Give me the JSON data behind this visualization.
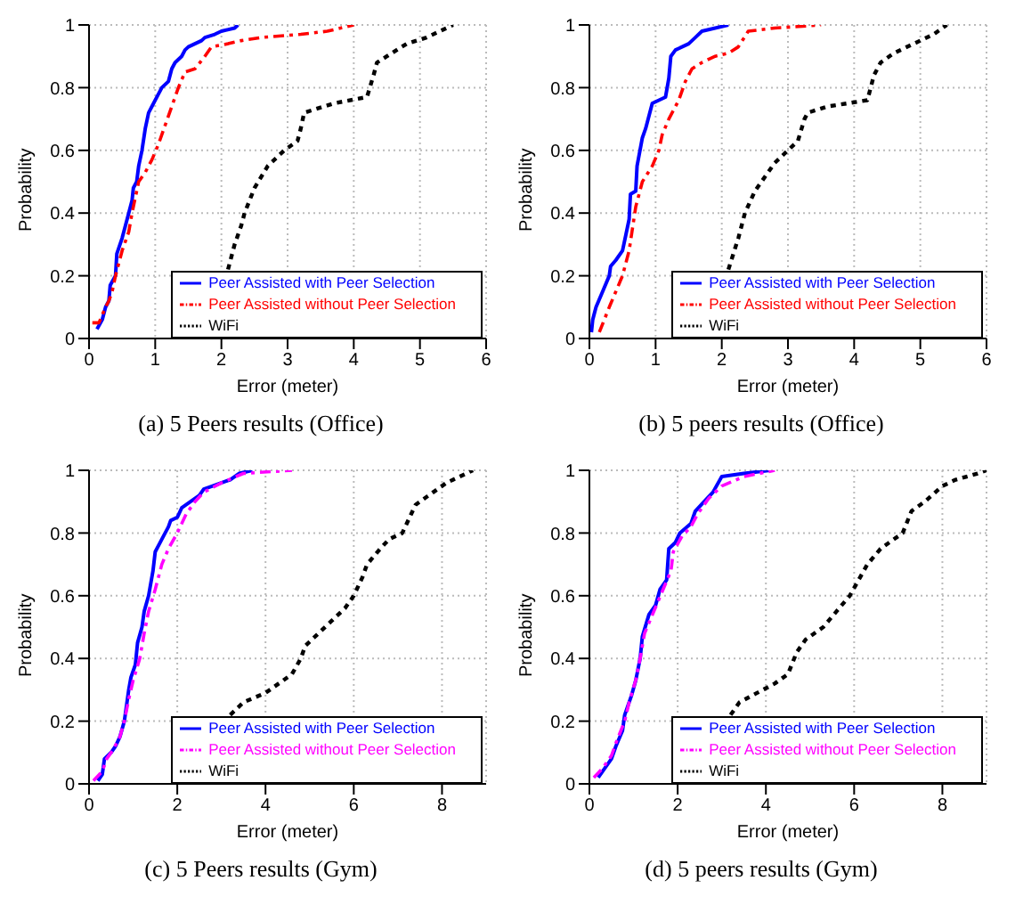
{
  "chart_data": [
    {
      "type": "line",
      "title": "(a) 5 Peers results (Office)",
      "xlabel": "Error (meter)",
      "ylabel": "Probability",
      "xlim": [
        0,
        6
      ],
      "xticks": [
        0,
        1,
        2,
        3,
        4,
        5,
        6
      ],
      "ylim": [
        0,
        1
      ],
      "yticks": [
        0,
        0.2,
        0.4,
        0.6,
        0.8,
        1
      ],
      "grid": true,
      "legend": "bottom right",
      "marker": "none",
      "series": [
        {
          "name": "Peer Assisted with Peer Selection",
          "color": "#0000ff",
          "line_style": "solid",
          "x": [
            0.12,
            0.2,
            0.25,
            0.3,
            0.32,
            0.4,
            0.42,
            0.5,
            0.55,
            0.6,
            0.65,
            0.67,
            0.72,
            0.75,
            0.8,
            0.85,
            0.9,
            0.95,
            1.05,
            1.1,
            1.2,
            1.25,
            1.3,
            1.4,
            1.45,
            1.5,
            1.6,
            1.7,
            1.75,
            1.9,
            2.0,
            2.2,
            2.25
          ],
          "values": [
            0.03,
            0.06,
            0.1,
            0.12,
            0.17,
            0.2,
            0.27,
            0.32,
            0.36,
            0.4,
            0.44,
            0.48,
            0.5,
            0.55,
            0.6,
            0.67,
            0.72,
            0.74,
            0.78,
            0.8,
            0.82,
            0.86,
            0.88,
            0.9,
            0.92,
            0.93,
            0.94,
            0.95,
            0.96,
            0.97,
            0.98,
            0.99,
            1.0
          ]
        },
        {
          "name": "Peer Assisted without Peer Selection",
          "color": "#ff0000",
          "line_style": "dashed",
          "x": [
            0.05,
            0.15,
            0.25,
            0.3,
            0.35,
            0.4,
            0.45,
            0.5,
            0.6,
            0.65,
            0.7,
            0.75,
            0.85,
            0.95,
            1.05,
            1.15,
            1.25,
            1.35,
            1.45,
            1.6,
            1.75,
            1.85,
            2.1,
            2.3,
            2.6,
            3.2,
            3.6,
            3.8,
            4.0
          ],
          "values": [
            0.05,
            0.05,
            0.1,
            0.12,
            0.15,
            0.2,
            0.24,
            0.28,
            0.34,
            0.4,
            0.45,
            0.5,
            0.53,
            0.57,
            0.62,
            0.68,
            0.74,
            0.8,
            0.85,
            0.86,
            0.9,
            0.93,
            0.94,
            0.95,
            0.96,
            0.97,
            0.98,
            0.99,
            1.0
          ]
        },
        {
          "name": "WiFi",
          "color": "#000000",
          "line_style": "dotted",
          "x": [
            2.1,
            2.2,
            2.3,
            2.35,
            2.5,
            2.7,
            2.95,
            3.15,
            3.2,
            3.25,
            3.4,
            3.7,
            4.2,
            4.3,
            4.35,
            4.5,
            4.8,
            5.1,
            5.3,
            5.5
          ],
          "values": [
            0.22,
            0.3,
            0.36,
            0.4,
            0.48,
            0.55,
            0.6,
            0.63,
            0.67,
            0.72,
            0.73,
            0.75,
            0.77,
            0.84,
            0.88,
            0.9,
            0.94,
            0.96,
            0.98,
            1.0
          ]
        }
      ]
    },
    {
      "type": "line",
      "title": "(b) 5 peers results (Office)",
      "xlabel": "Error (meter)",
      "ylabel": "Probability",
      "xlim": [
        0,
        6
      ],
      "xticks": [
        0,
        1,
        2,
        3,
        4,
        5,
        6
      ],
      "ylim": [
        0,
        1
      ],
      "yticks": [
        0,
        0.2,
        0.4,
        0.6,
        0.8,
        1
      ],
      "grid": true,
      "legend": "bottom right",
      "marker": "none",
      "series": [
        {
          "name": "Peer Assisted with Peer Selection",
          "color": "#0000ff",
          "line_style": "solid",
          "x": [
            0.03,
            0.05,
            0.1,
            0.2,
            0.3,
            0.32,
            0.4,
            0.5,
            0.55,
            0.6,
            0.62,
            0.7,
            0.72,
            0.8,
            0.85,
            0.95,
            1.05,
            1.15,
            1.2,
            1.23,
            1.3,
            1.5,
            1.6,
            1.7,
            2.1
          ],
          "values": [
            0.02,
            0.06,
            0.1,
            0.15,
            0.2,
            0.23,
            0.25,
            0.28,
            0.33,
            0.38,
            0.46,
            0.47,
            0.55,
            0.64,
            0.67,
            0.75,
            0.76,
            0.77,
            0.83,
            0.9,
            0.92,
            0.94,
            0.96,
            0.98,
            1.0
          ]
        },
        {
          "name": "Peer Assisted without Peer Selection",
          "color": "#ff0000",
          "line_style": "dashed",
          "x": [
            0.15,
            0.3,
            0.4,
            0.5,
            0.6,
            0.65,
            0.7,
            0.8,
            0.95,
            1.05,
            1.1,
            1.2,
            1.35,
            1.45,
            1.55,
            1.7,
            1.9,
            2.1,
            2.25,
            2.4,
            2.8,
            3.5
          ],
          "values": [
            0.02,
            0.1,
            0.15,
            0.2,
            0.28,
            0.35,
            0.42,
            0.5,
            0.55,
            0.6,
            0.65,
            0.7,
            0.76,
            0.82,
            0.86,
            0.88,
            0.9,
            0.91,
            0.93,
            0.98,
            0.99,
            1.0
          ]
        },
        {
          "name": "WiFi",
          "color": "#000000",
          "line_style": "dotted",
          "x": [
            2.1,
            2.25,
            2.35,
            2.5,
            2.8,
            3.0,
            3.15,
            3.25,
            3.3,
            3.6,
            4.2,
            4.3,
            4.4,
            4.6,
            5.0,
            5.2,
            5.4
          ],
          "values": [
            0.22,
            0.32,
            0.4,
            0.47,
            0.56,
            0.6,
            0.63,
            0.7,
            0.72,
            0.74,
            0.76,
            0.84,
            0.88,
            0.91,
            0.95,
            0.97,
            1.0
          ]
        }
      ]
    },
    {
      "type": "line",
      "title": "(c) 5 Peers results (Gym)",
      "xlabel": "Error (meter)",
      "ylabel": "Probability",
      "xlim": [
        0,
        9
      ],
      "xticks": [
        0,
        2,
        4,
        6,
        8
      ],
      "ylim": [
        0,
        1
      ],
      "yticks": [
        0,
        0.2,
        0.4,
        0.6,
        0.8,
        1
      ],
      "grid": true,
      "legend": "bottom right",
      "marker": "none",
      "series": [
        {
          "name": "Peer Assisted with Peer Selection",
          "color": "#0000ff",
          "line_style": "solid",
          "x": [
            0.2,
            0.3,
            0.35,
            0.5,
            0.6,
            0.7,
            0.8,
            0.85,
            0.9,
            0.95,
            1.05,
            1.1,
            1.2,
            1.25,
            1.35,
            1.45,
            1.5,
            1.65,
            1.8,
            1.85,
            2.0,
            2.1,
            2.3,
            2.5,
            2.6,
            2.8,
            3.2,
            3.4,
            3.7
          ],
          "values": [
            0.01,
            0.03,
            0.08,
            0.1,
            0.12,
            0.15,
            0.2,
            0.25,
            0.3,
            0.34,
            0.38,
            0.45,
            0.5,
            0.55,
            0.6,
            0.68,
            0.74,
            0.78,
            0.82,
            0.84,
            0.85,
            0.88,
            0.9,
            0.92,
            0.94,
            0.95,
            0.97,
            0.99,
            1.0
          ]
        },
        {
          "name": "Peer Assisted without Peer Selection",
          "color": "#ff00ff",
          "line_style": "dashed",
          "x": [
            0.1,
            0.3,
            0.4,
            0.55,
            0.7,
            0.8,
            0.9,
            1.0,
            1.15,
            1.25,
            1.35,
            1.5,
            1.65,
            1.8,
            2.0,
            2.2,
            2.4,
            2.6,
            3.0,
            3.5,
            4.6
          ],
          "values": [
            0.01,
            0.04,
            0.08,
            0.11,
            0.15,
            0.2,
            0.27,
            0.33,
            0.4,
            0.48,
            0.55,
            0.62,
            0.7,
            0.75,
            0.8,
            0.86,
            0.9,
            0.93,
            0.96,
            0.99,
            1.0
          ]
        },
        {
          "name": "WiFi",
          "color": "#000000",
          "line_style": "dotted",
          "x": [
            3.2,
            3.5,
            4.0,
            4.3,
            4.6,
            4.8,
            4.9,
            5.2,
            5.5,
            5.8,
            6.0,
            6.2,
            6.3,
            6.6,
            6.8,
            7.1,
            7.3,
            7.4,
            7.8,
            8.1,
            8.7
          ],
          "values": [
            0.22,
            0.26,
            0.29,
            0.32,
            0.35,
            0.4,
            0.44,
            0.48,
            0.52,
            0.56,
            0.6,
            0.66,
            0.7,
            0.75,
            0.78,
            0.8,
            0.86,
            0.89,
            0.93,
            0.96,
            1.0
          ]
        }
      ]
    },
    {
      "type": "line",
      "title": "(d) 5 peers results (Gym)",
      "xlabel": "Error (meter)",
      "ylabel": "Probability",
      "xlim": [
        0,
        9
      ],
      "xticks": [
        0,
        2,
        4,
        6,
        8
      ],
      "ylim": [
        0,
        1
      ],
      "yticks": [
        0,
        0.2,
        0.4,
        0.6,
        0.8,
        1
      ],
      "grid": true,
      "legend": "bottom right",
      "marker": "none",
      "series": [
        {
          "name": "Peer Assisted with Peer Selection",
          "color": "#0000ff",
          "line_style": "solid",
          "x": [
            0.2,
            0.3,
            0.5,
            0.6,
            0.75,
            0.8,
            0.95,
            1.05,
            1.15,
            1.2,
            1.35,
            1.5,
            1.6,
            1.75,
            1.8,
            1.95,
            2.05,
            2.3,
            2.4,
            2.6,
            2.8,
            3.0,
            3.5,
            4.1
          ],
          "values": [
            0.02,
            0.04,
            0.08,
            0.12,
            0.17,
            0.22,
            0.28,
            0.33,
            0.4,
            0.47,
            0.54,
            0.57,
            0.62,
            0.65,
            0.75,
            0.77,
            0.8,
            0.83,
            0.87,
            0.9,
            0.93,
            0.98,
            0.99,
            1.0
          ]
        },
        {
          "name": "Peer Assisted without Peer Selection",
          "color": "#ff00ff",
          "line_style": "dashed",
          "x": [
            0.1,
            0.3,
            0.5,
            0.6,
            0.8,
            0.9,
            1.05,
            1.15,
            1.25,
            1.4,
            1.55,
            1.7,
            1.85,
            1.9,
            2.1,
            2.3,
            2.45,
            2.7,
            3.0,
            3.5,
            4.2
          ],
          "values": [
            0.02,
            0.05,
            0.09,
            0.13,
            0.2,
            0.26,
            0.33,
            0.4,
            0.48,
            0.53,
            0.58,
            0.63,
            0.68,
            0.74,
            0.79,
            0.82,
            0.86,
            0.91,
            0.95,
            0.98,
            1.0
          ]
        },
        {
          "name": "WiFi",
          "color": "#000000",
          "line_style": "dotted",
          "x": [
            3.2,
            3.4,
            3.8,
            4.2,
            4.5,
            4.7,
            4.9,
            5.3,
            5.6,
            5.9,
            6.1,
            6.3,
            6.6,
            6.8,
            7.1,
            7.3,
            7.6,
            8.0,
            8.3,
            8.8,
            9.0
          ],
          "values": [
            0.22,
            0.26,
            0.29,
            0.32,
            0.35,
            0.42,
            0.46,
            0.5,
            0.55,
            0.6,
            0.65,
            0.7,
            0.75,
            0.77,
            0.8,
            0.87,
            0.9,
            0.95,
            0.97,
            0.99,
            1.0
          ]
        }
      ]
    }
  ]
}
